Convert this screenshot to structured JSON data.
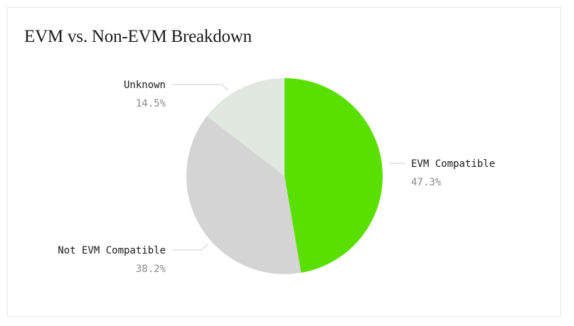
{
  "chart_data": {
    "type": "pie",
    "title": "EVM vs. Non-EVM Breakdown",
    "slices": [
      {
        "label": "EVM Compatible",
        "value": 47.3,
        "display": "47.3%",
        "color": "#5ae000"
      },
      {
        "label": "Not EVM Compatible",
        "value": 38.2,
        "display": "38.2%",
        "color": "#d4d4d4"
      },
      {
        "label": "Unknown",
        "value": 14.5,
        "display": "14.5%",
        "color": "#e1e8e0"
      }
    ],
    "start_angle_deg": 0,
    "direction": "clockwise"
  }
}
